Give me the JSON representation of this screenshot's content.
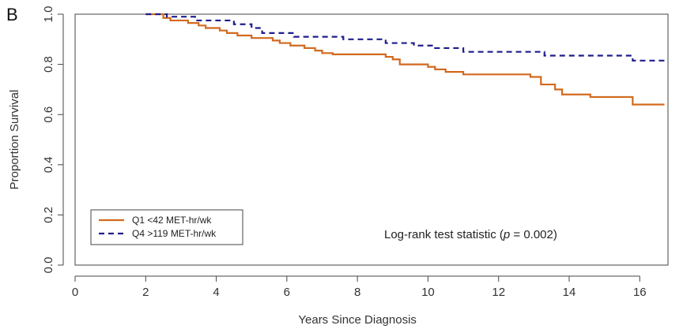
{
  "panel_label": "B",
  "chart_data": {
    "type": "line",
    "title": "",
    "xlabel": "Years Since Diagnosis",
    "ylabel": "Proportion Survival",
    "xlim": [
      0,
      16.8
    ],
    "ylim": [
      0,
      1.0
    ],
    "x_ticks": [
      0,
      2,
      4,
      6,
      8,
      10,
      12,
      14,
      16
    ],
    "y_ticks": [
      0.0,
      0.2,
      0.4,
      0.6,
      0.8,
      1.0
    ],
    "x_tick_labels": [
      "0",
      "2",
      "4",
      "6",
      "8",
      "10",
      "12",
      "14",
      "16"
    ],
    "y_tick_labels": [
      "0.0",
      "0.2",
      "0.4",
      "0.6",
      "0.8",
      "1.0"
    ],
    "grid": false,
    "legend_position": "bottom-left",
    "annotation": {
      "prefix": "Log-rank test statistic (",
      "italic": "p",
      "suffix": " = 0.002)"
    },
    "series": [
      {
        "name": "Q1 <42 MET-hr/wk",
        "color": "#d2691e",
        "style": "solid",
        "step": true,
        "x": [
          2.0,
          2.5,
          2.7,
          3.2,
          3.5,
          3.7,
          4.1,
          4.3,
          4.6,
          5.0,
          5.6,
          5.8,
          6.1,
          6.5,
          6.8,
          7.0,
          7.3,
          8.8,
          9.0,
          9.2,
          10.0,
          10.2,
          10.5,
          11.0,
          12.0,
          12.9,
          13.2,
          13.6,
          13.8,
          14.6,
          15.8,
          16.7
        ],
        "y": [
          1.0,
          0.985,
          0.975,
          0.965,
          0.955,
          0.945,
          0.935,
          0.925,
          0.915,
          0.905,
          0.895,
          0.885,
          0.875,
          0.865,
          0.855,
          0.845,
          0.84,
          0.83,
          0.82,
          0.8,
          0.79,
          0.78,
          0.77,
          0.76,
          0.76,
          0.75,
          0.72,
          0.7,
          0.68,
          0.67,
          0.64,
          0.64
        ]
      },
      {
        "name": "Q4 >119 MET-hr/wk",
        "color": "#1e1e8c",
        "style": "dashed",
        "step": true,
        "x": [
          2.0,
          2.6,
          3.4,
          4.5,
          5.0,
          5.3,
          6.2,
          7.6,
          8.8,
          9.6,
          10.2,
          11.0,
          13.0,
          13.3,
          15.8,
          16.7
        ],
        "y": [
          1.0,
          0.99,
          0.975,
          0.96,
          0.945,
          0.925,
          0.91,
          0.9,
          0.885,
          0.875,
          0.865,
          0.85,
          0.85,
          0.835,
          0.815,
          0.815
        ]
      }
    ]
  }
}
